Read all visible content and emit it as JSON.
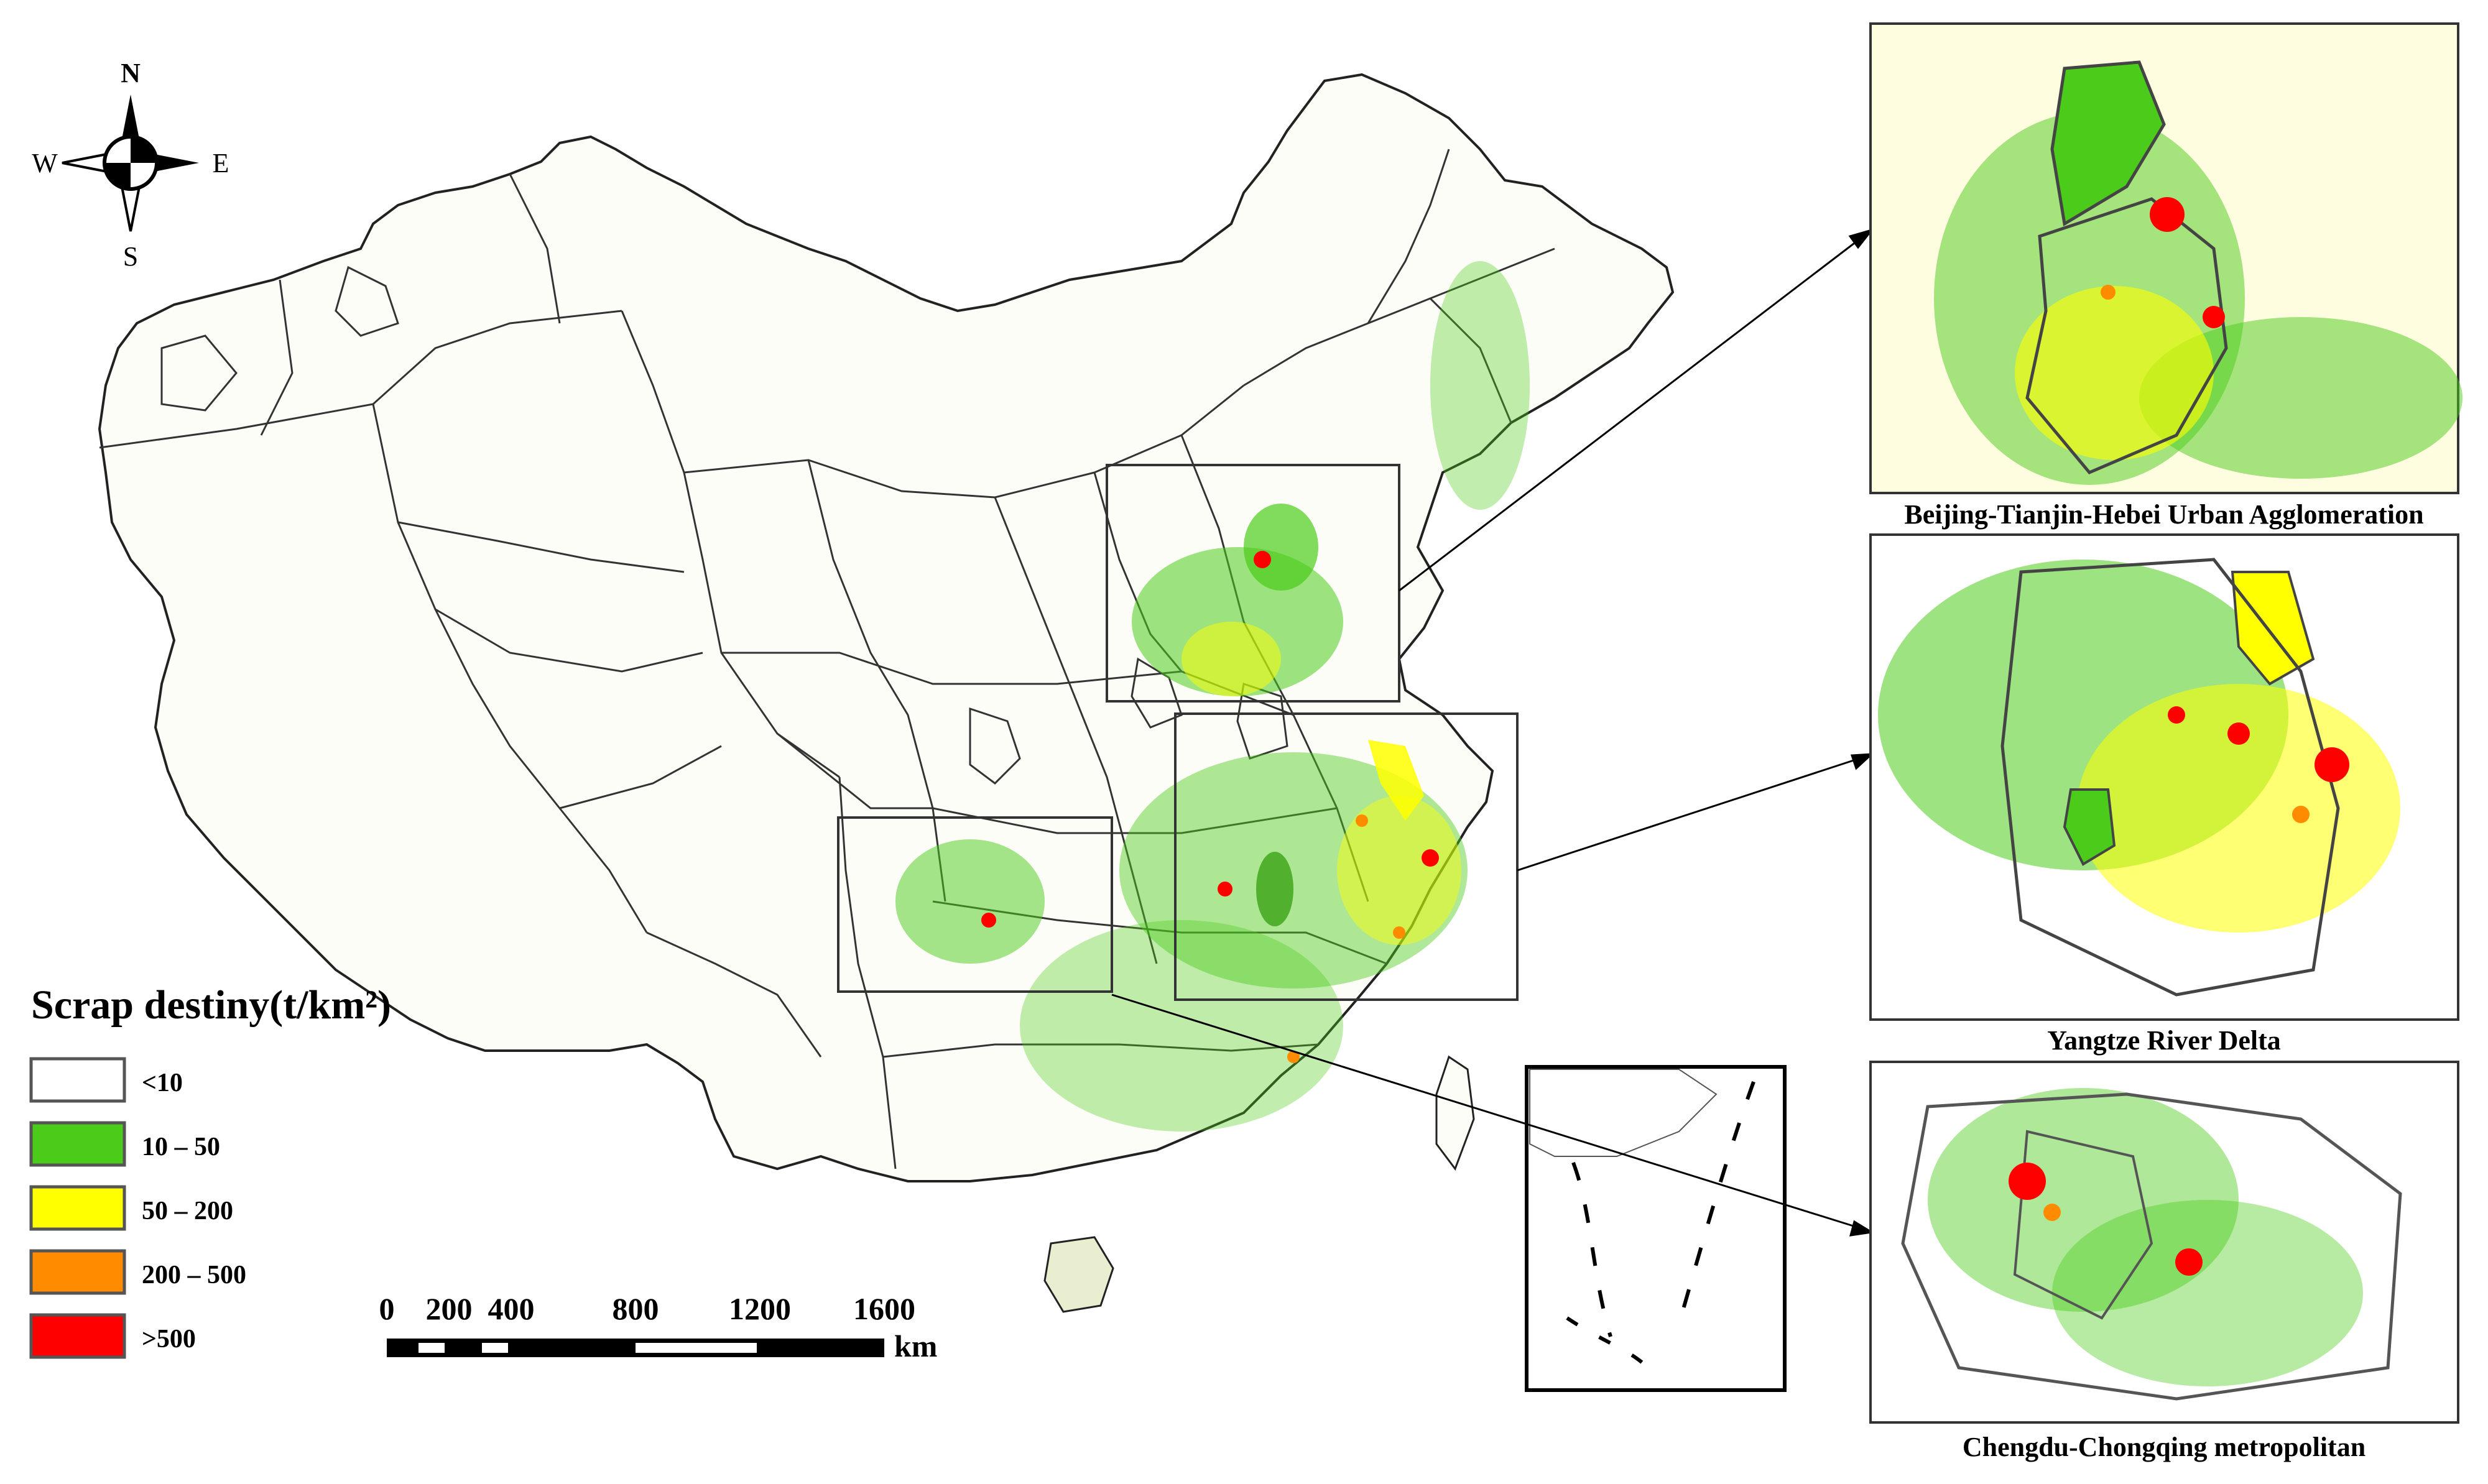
{
  "compass": {
    "north": "N",
    "south": "S",
    "east": "E",
    "west": "W"
  },
  "legend": {
    "title": "Scrap destiny(t/km²)",
    "classes": [
      {
        "label": "<10",
        "color": "#ffffff"
      },
      {
        "label": "10 – 50",
        "color": "#4ccc1a"
      },
      {
        "label": "50 – 200",
        "color": "#ffff00"
      },
      {
        "label": "200 – 500",
        "color": "#ff8c00"
      },
      {
        "label": ">500",
        "color": "#ff0000"
      }
    ]
  },
  "scale_bar": {
    "ticks": [
      "0",
      "200",
      "400",
      "800",
      "1200",
      "1600"
    ],
    "unit": "km"
  },
  "insets": [
    {
      "id": "jjj",
      "caption": "Beijing-Tianjin-Hebei Urban Agglomeration"
    },
    {
      "id": "yrd",
      "caption": "Yangtze River Delta"
    },
    {
      "id": "cc",
      "caption": "Chengdu-Chongqing metropolitan"
    }
  ],
  "colors": {
    "green": "#4ccc1a",
    "yellow": "#ffff00",
    "orange": "#ff8c00",
    "red": "#ff0000",
    "boundary": "#222222"
  }
}
